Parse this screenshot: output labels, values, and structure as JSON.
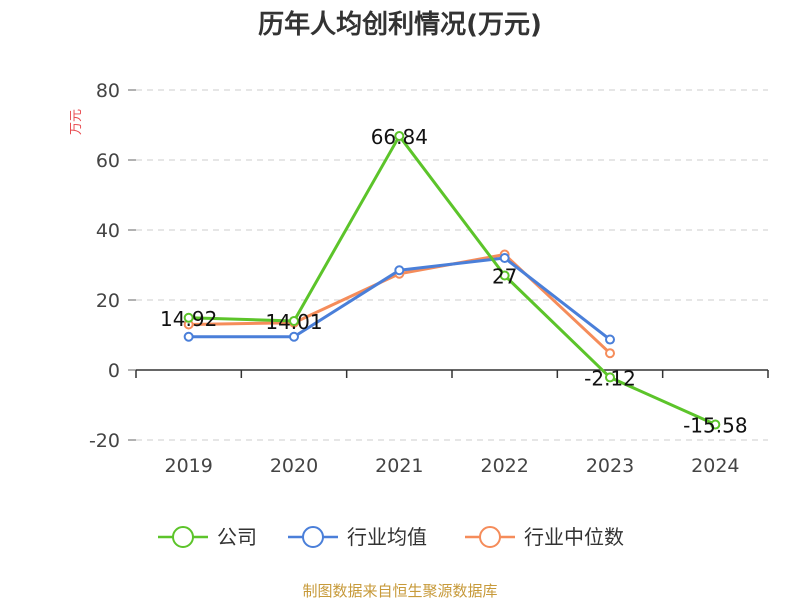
{
  "chart_data": {
    "type": "line",
    "title": "历年人均创利情况(万元)",
    "ylabel": "万元",
    "xlabel": "",
    "categories": [
      "2019",
      "2020",
      "2021",
      "2022",
      "2023",
      "2024"
    ],
    "ylim": [
      -20,
      80
    ],
    "yticks": [
      -20,
      0,
      20,
      40,
      60,
      80
    ],
    "grid": true,
    "legend_position": "bottom",
    "series": [
      {
        "name": "公司",
        "values": [
          14.92,
          14.01,
          66.84,
          27,
          -2.12,
          -15.58
        ],
        "data_labels": [
          "14.92",
          "14.01",
          "66.84",
          "27",
          "-2.12",
          "-15.58"
        ],
        "color": "#5cc42a"
      },
      {
        "name": "行业均值",
        "values": [
          9.5,
          9.5,
          28.5,
          32,
          8.7,
          null
        ],
        "color": "#4a7fd9"
      },
      {
        "name": "行业中位数",
        "values": [
          13,
          13.5,
          27.5,
          33,
          4.8,
          null
        ],
        "color": "#f58c5a"
      }
    ]
  },
  "source": "制图数据来自恒生聚源数据库"
}
